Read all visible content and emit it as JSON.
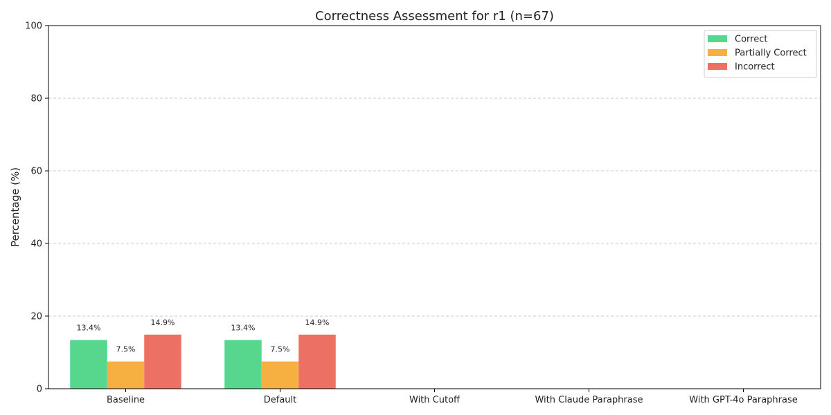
{
  "chart_data": {
    "type": "bar",
    "title": "Correctness Assessment for r1 (n=67)",
    "xlabel": "",
    "ylabel": "Percentage (%)",
    "ylim": [
      0,
      100
    ],
    "yticks": [
      0,
      20,
      40,
      60,
      80,
      100
    ],
    "grid": true,
    "legend_position": "top-right",
    "categories": [
      "Baseline",
      "Default",
      "With Cutoff",
      "With Claude Paraphrase",
      "With GPT-4o Paraphrase"
    ],
    "series": [
      {
        "name": "Correct",
        "color": "#57d68d",
        "values": [
          13.4,
          13.4,
          0,
          0,
          0
        ],
        "labels": [
          "13.4%",
          "13.4%",
          "",
          "",
          ""
        ]
      },
      {
        "name": "Partially Correct",
        "color": "#f5b041",
        "values": [
          7.5,
          7.5,
          0,
          0,
          0
        ],
        "labels": [
          "7.5%",
          "7.5%",
          "",
          "",
          ""
        ]
      },
      {
        "name": "Incorrect",
        "color": "#ec7063",
        "values": [
          14.9,
          14.9,
          0,
          0,
          0
        ],
        "labels": [
          "14.9%",
          "14.9%",
          "",
          "",
          ""
        ]
      }
    ]
  }
}
